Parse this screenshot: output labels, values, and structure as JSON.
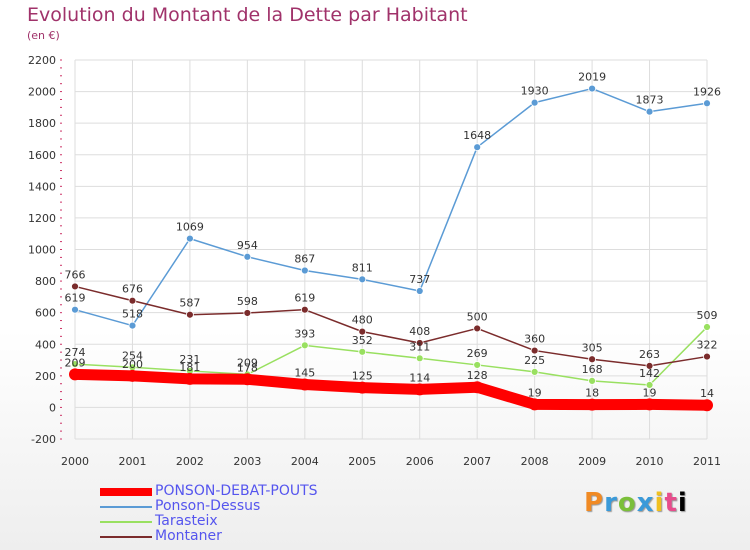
{
  "chart_data": {
    "type": "line",
    "title": "Evolution du Montant de la Dette par Habitant",
    "subtitle": "(en €)",
    "x": [
      "2000",
      "2001",
      "2002",
      "2003",
      "2004",
      "2005",
      "2006",
      "2007",
      "2008",
      "2009",
      "2010",
      "2011"
    ],
    "ylim": [
      -200,
      2200
    ],
    "yticks": [
      -200,
      0,
      200,
      400,
      600,
      800,
      1000,
      1200,
      1400,
      1600,
      1800,
      2000,
      2200
    ],
    "grid": true,
    "legend_position": "bottom-left",
    "series": [
      {
        "name": "PONSON-DEBAT-POUTS",
        "color": "#ff0000",
        "values": [
          209,
          200,
          181,
          178,
          145,
          125,
          114,
          128,
          19,
          18,
          19,
          14
        ]
      },
      {
        "name": "Ponson-Dessus",
        "color": "#5b9bd5",
        "values": [
          619,
          518,
          1069,
          954,
          867,
          811,
          737,
          1648,
          1930,
          2019,
          1873,
          1926
        ]
      },
      {
        "name": "Tarasteix",
        "color": "#99e060",
        "values": [
          274,
          254,
          231,
          209,
          393,
          352,
          311,
          269,
          225,
          168,
          142,
          509
        ]
      },
      {
        "name": "Montaner",
        "color": "#7b2c2c",
        "values": [
          766,
          676,
          587,
          598,
          619,
          480,
          408,
          500,
          360,
          305,
          263,
          322
        ]
      }
    ]
  },
  "logo": {
    "letters": [
      "P",
      "r",
      "o",
      "x",
      "i",
      "t",
      "i"
    ]
  }
}
